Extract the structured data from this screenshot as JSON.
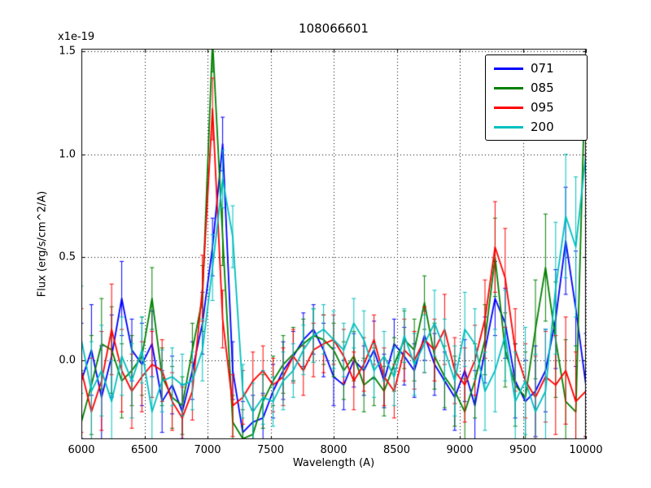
{
  "chart_data": {
    "type": "line",
    "title": "108066601",
    "xlabel": "Wavelength (A)",
    "ylabel": "Flux (erg/s/cm^2/A)",
    "offset_text": "x1e-19",
    "grid": true,
    "legend_position": "upper right",
    "xlim": [
      6000,
      10000
    ],
    "ylim": [
      -0.383,
      1.512
    ],
    "xticks": [
      6000,
      6500,
      7000,
      7500,
      8000,
      8500,
      9000,
      9500,
      10000
    ],
    "xtick_labels": [
      "6000",
      "6500",
      "7000",
      "7500",
      "8000",
      "8500",
      "9000",
      "9500",
      "10000"
    ],
    "yticks": [
      0.0,
      0.5,
      1.0,
      1.5
    ],
    "ytick_labels": [
      "0.0",
      "0.5",
      "1.0",
      "1.5"
    ],
    "x": [
      6000,
      6080,
      6160,
      6240,
      6320,
      6400,
      6480,
      6560,
      6640,
      6720,
      6800,
      6880,
      6960,
      7040,
      7120,
      7200,
      7280,
      7360,
      7440,
      7520,
      7600,
      7680,
      7760,
      7840,
      7920,
      8000,
      8080,
      8160,
      8240,
      8320,
      8400,
      8480,
      8560,
      8640,
      8720,
      8800,
      8880,
      8960,
      9040,
      9120,
      9200,
      9280,
      9360,
      9440,
      9520,
      9600,
      9680,
      9760,
      9840,
      9920,
      10000
    ],
    "series": [
      {
        "name": "071",
        "color": "#0000ff",
        "y": [
          -0.1,
          0.05,
          -0.18,
          0.02,
          0.3,
          0.05,
          -0.02,
          0.08,
          -0.2,
          -0.12,
          -0.25,
          -0.05,
          0.18,
          0.55,
          1.05,
          -0.05,
          -0.35,
          -0.3,
          -0.28,
          -0.15,
          -0.05,
          0.02,
          0.1,
          0.15,
          0.05,
          -0.08,
          -0.12,
          0.0,
          -0.05,
          0.05,
          -0.1,
          0.08,
          0.02,
          -0.05,
          0.12,
          -0.02,
          -0.1,
          -0.18,
          -0.05,
          -0.22,
          0.05,
          0.3,
          0.18,
          -0.1,
          -0.2,
          -0.15,
          -0.05,
          0.2,
          0.58,
          0.25,
          -0.12
        ],
        "yerr": [
          0.28,
          0.22,
          0.25,
          0.2,
          0.18,
          0.15,
          0.2,
          0.16,
          0.15,
          0.14,
          0.13,
          0.14,
          0.15,
          0.14,
          0.13,
          0.14,
          0.15,
          0.13,
          0.12,
          0.13,
          0.14,
          0.12,
          0.13,
          0.12,
          0.13,
          0.14,
          0.12,
          0.13,
          0.12,
          0.14,
          0.13,
          0.12,
          0.14,
          0.13,
          0.12,
          0.15,
          0.14,
          0.16,
          0.15,
          0.17,
          0.16,
          0.18,
          0.17,
          0.18,
          0.2,
          0.22,
          0.2,
          0.24,
          0.26,
          0.28,
          0.25
        ]
      },
      {
        "name": "085",
        "color": "#008000",
        "y": [
          -0.3,
          -0.12,
          0.08,
          0.05,
          -0.1,
          -0.05,
          0.02,
          0.3,
          -0.08,
          -0.18,
          -0.22,
          0.05,
          0.3,
          1.55,
          0.6,
          -0.3,
          -0.38,
          -0.36,
          -0.2,
          -0.1,
          -0.02,
          0.03,
          0.08,
          0.12,
          0.1,
          0.05,
          -0.05,
          0.02,
          -0.12,
          -0.08,
          -0.15,
          -0.02,
          0.1,
          0.05,
          0.28,
          0.02,
          -0.08,
          -0.15,
          -0.25,
          -0.1,
          0.1,
          0.5,
          0.05,
          -0.12,
          -0.18,
          0.15,
          0.45,
          0.1,
          -0.2,
          -0.25,
          1.5
        ],
        "yerr": [
          0.25,
          0.24,
          0.22,
          0.21,
          0.18,
          0.17,
          0.19,
          0.15,
          0.14,
          0.15,
          0.14,
          0.13,
          0.16,
          0.15,
          0.14,
          0.13,
          0.14,
          0.12,
          0.13,
          0.12,
          0.14,
          0.13,
          0.12,
          0.13,
          0.12,
          0.13,
          0.14,
          0.12,
          0.13,
          0.14,
          0.12,
          0.13,
          0.14,
          0.15,
          0.13,
          0.16,
          0.15,
          0.17,
          0.16,
          0.18,
          0.17,
          0.19,
          0.18,
          0.2,
          0.22,
          0.24,
          0.26,
          0.28,
          0.3,
          0.32,
          0.3
        ]
      },
      {
        "name": "095",
        "color": "#ff0000",
        "y": [
          -0.05,
          -0.25,
          -0.1,
          0.15,
          -0.05,
          -0.15,
          -0.08,
          -0.02,
          -0.05,
          -0.2,
          -0.28,
          -0.15,
          0.35,
          1.22,
          0.2,
          -0.22,
          -0.18,
          -0.1,
          -0.05,
          -0.12,
          -0.08,
          0.02,
          -0.05,
          0.05,
          0.08,
          0.1,
          0.02,
          -0.1,
          -0.02,
          0.1,
          -0.08,
          -0.15,
          0.05,
          0.0,
          0.1,
          0.05,
          0.15,
          -0.05,
          -0.12,
          0.0,
          0.2,
          0.55,
          0.4,
          0.05,
          -0.1,
          -0.18,
          -0.08,
          -0.12,
          -0.05,
          -0.2,
          -0.15
        ],
        "yerr": [
          0.3,
          0.26,
          0.24,
          0.22,
          0.2,
          0.18,
          0.17,
          0.16,
          0.15,
          0.14,
          0.15,
          0.14,
          0.16,
          0.15,
          0.14,
          0.15,
          0.13,
          0.14,
          0.12,
          0.13,
          0.14,
          0.13,
          0.12,
          0.13,
          0.14,
          0.12,
          0.13,
          0.14,
          0.13,
          0.12,
          0.14,
          0.13,
          0.15,
          0.14,
          0.16,
          0.15,
          0.17,
          0.16,
          0.18,
          0.17,
          0.19,
          0.22,
          0.24,
          0.2,
          0.18,
          0.2,
          0.22,
          0.24,
          0.26,
          0.24,
          0.22
        ]
      },
      {
        "name": "200",
        "color": "#00bfbf",
        "y": [
          0.1,
          -0.15,
          -0.05,
          -0.2,
          0.02,
          -0.1,
          0.05,
          -0.25,
          -0.1,
          -0.08,
          -0.12,
          -0.1,
          0.05,
          0.45,
          0.88,
          0.6,
          -0.15,
          -0.25,
          -0.18,
          -0.2,
          -0.1,
          -0.05,
          0.05,
          0.12,
          0.15,
          0.1,
          0.05,
          0.18,
          0.1,
          -0.05,
          0.02,
          -0.08,
          0.12,
          -0.02,
          0.08,
          0.18,
          0.05,
          -0.1,
          0.15,
          0.08,
          -0.15,
          -0.05,
          0.12,
          -0.2,
          -0.1,
          -0.25,
          -0.15,
          0.35,
          0.7,
          0.55,
          1.0
        ],
        "yerr": [
          0.26,
          0.24,
          0.22,
          0.2,
          0.19,
          0.18,
          0.16,
          0.17,
          0.15,
          0.14,
          0.15,
          0.14,
          0.15,
          0.16,
          0.14,
          0.15,
          0.13,
          0.14,
          0.13,
          0.12,
          0.14,
          0.13,
          0.12,
          0.13,
          0.12,
          0.14,
          0.13,
          0.12,
          0.14,
          0.13,
          0.12,
          0.14,
          0.13,
          0.15,
          0.14,
          0.16,
          0.15,
          0.17,
          0.18,
          0.17,
          0.19,
          0.2,
          0.22,
          0.24,
          0.26,
          0.28,
          0.3,
          0.32,
          0.3,
          0.34,
          0.3
        ]
      }
    ]
  }
}
